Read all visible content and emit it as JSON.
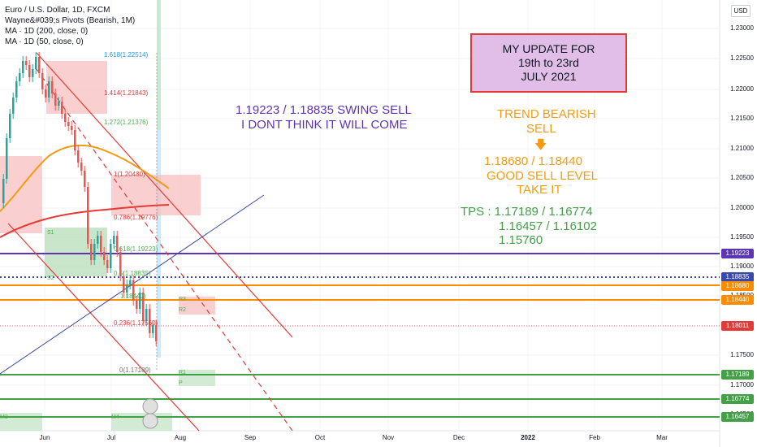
{
  "legend": {
    "symbol": "Euro / U.S. Dollar, 1D, FXCM",
    "pivots": "Wayne&#039;s Pivots (Bearish, 1M)",
    "ma200": "MA · 1D (200, close, 0)",
    "ma50": "MA · 1D (50, close, 0)"
  },
  "currency_button": "USD",
  "price_axis": [
    "1.23000",
    "1.22500",
    "1.22000",
    "1.21500",
    "1.21000",
    "1.20500",
    "1.20000",
    "1.19500",
    "1.19000",
    "1.18500",
    "1.18000",
    "1.17500",
    "1.17000",
    "1.16500"
  ],
  "price_tags": [
    {
      "value": "1.19223",
      "color": "#5e35b1"
    },
    {
      "value": "1.18835",
      "color": "#3949ab"
    },
    {
      "value": "1.18680",
      "color": "#fb8c00"
    },
    {
      "value": "1.18440",
      "color": "#fb8c00"
    },
    {
      "value": "1.18011",
      "color": "#e53935"
    },
    {
      "value": "1.17189",
      "color": "#43a047"
    },
    {
      "value": "1.16774",
      "color": "#43a047"
    },
    {
      "value": "1.16457",
      "color": "#43a047"
    }
  ],
  "time_axis": [
    {
      "label": "Jun",
      "bold": false
    },
    {
      "label": "Jul",
      "bold": false
    },
    {
      "label": "Aug",
      "bold": false
    },
    {
      "label": "Sep",
      "bold": false
    },
    {
      "label": "Oct",
      "bold": false
    },
    {
      "label": "Nov",
      "bold": false
    },
    {
      "label": "Dec",
      "bold": false
    },
    {
      "label": "2022",
      "bold": true
    },
    {
      "label": "Feb",
      "bold": false
    },
    {
      "label": "Mar",
      "bold": false
    }
  ],
  "fib_levels": [
    {
      "label": "1.618(1.22514)",
      "color": "#2196f3"
    },
    {
      "label": "1.414(1.21843)",
      "color": "#e53935"
    },
    {
      "label": "1.272(1.21376)",
      "color": "#4caf50"
    },
    {
      "label": "1(1.20480)",
      "color": "#e53935"
    },
    {
      "label": "0.786(1.19776)",
      "color": "#e53935"
    },
    {
      "label": "0.618(1.19223)",
      "color": "#4caf50"
    },
    {
      "label": "0.5(1.18835)",
      "color": "#4caf50"
    },
    {
      "label": "1.18440)",
      "color": "#4caf50"
    },
    {
      "label": "0.236(1.17560)",
      "color": "#e53935"
    },
    {
      "label": "0(1.17189)",
      "color": "#757575"
    }
  ],
  "pivot_labels": [
    "R3",
    "R2",
    "R1",
    "P",
    "S1",
    "S2",
    "M4",
    "M3"
  ],
  "update_box": {
    "line1": "MY UPDATE FOR",
    "line2": "19th to 23rd",
    "line3": "JULY 2021"
  },
  "swing_note": {
    "line1": "1.19223 / 1.18835 SWING SELL",
    "line2": "I DONT THINK IT WILL COME"
  },
  "trend_note": {
    "line1": "TREND  BEARISH",
    "line2": "SELL",
    "arrow": "🡇",
    "line3": "1.18680 / 1.18440",
    "line4": "GOOD SELL LEVEL",
    "line5": "TAKE IT"
  },
  "tps_note": {
    "line1": "TPS : 1.17189 / 1.16774",
    "line2": "1.16457 / 1.16102",
    "line3": "1.15760"
  },
  "colors": {
    "purple": "#5e35b1",
    "orange": "#f39c12",
    "green": "#43a047",
    "red": "#e53935"
  }
}
